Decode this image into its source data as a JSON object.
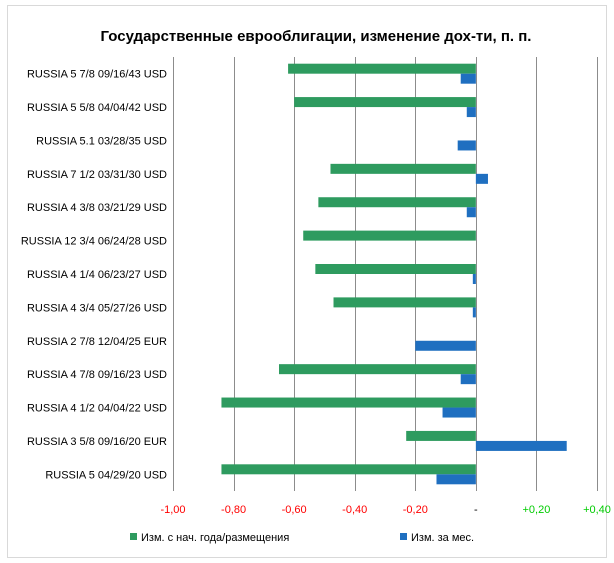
{
  "chart_data": {
    "type": "bar",
    "orientation": "horizontal",
    "title": "Государственные еврооблигации, изменение дох-ти, п. п.",
    "categories": [
      "RUSSIA 5 7/8 09/16/43 USD",
      "RUSSIA 5 5/8 04/04/42 USD",
      "RUSSIA 5.1 03/28/35 USD",
      "RUSSIA 7 1/2 03/31/30 USD",
      "RUSSIA 4 3/8 03/21/29 USD",
      "RUSSIA 12 3/4 06/24/28 USD",
      "RUSSIA 4 1/4 06/23/27 USD",
      "RUSSIA 4 3/4 05/27/26 USD",
      "RUSSIA 2 7/8 12/04/25 EUR",
      "RUSSIA 4 7/8 09/16/23 USD",
      "RUSSIA 4 1/2 04/04/22 USD",
      "RUSSIA 3 5/8 09/16/20 EUR",
      "RUSSIA 5 04/29/20 USD"
    ],
    "series": [
      {
        "name": "Изм. с нач. года/размещения",
        "color": "#2e9b5f",
        "values": [
          -0.62,
          -0.6,
          null,
          -0.48,
          -0.52,
          -0.57,
          -0.53,
          -0.47,
          null,
          -0.65,
          -0.84,
          -0.23,
          -0.84
        ]
      },
      {
        "name": "Изм. за мес.",
        "color": "#1f6fc0",
        "values": [
          -0.05,
          -0.03,
          -0.06,
          0.04,
          -0.03,
          null,
          -0.01,
          -0.01,
          -0.2,
          -0.05,
          -0.11,
          0.3,
          -0.13
        ]
      }
    ],
    "xlim": [
      -1.0,
      0.4
    ],
    "xticks": [
      -1.0,
      -0.8,
      -0.6,
      -0.4,
      -0.2,
      0.0,
      0.2,
      0.4
    ],
    "xtick_labels": [
      "-1,00",
      "-0,80",
      "-0,60",
      "-0,40",
      "-0,20",
      "-",
      "+0,20",
      "+0,40"
    ],
    "xtick_colors": [
      "#ff0000",
      "#ff0000",
      "#ff0000",
      "#ff0000",
      "#ff0000",
      "#000000",
      "#00cc00",
      "#00cc00"
    ],
    "grid": true,
    "legend": "bottom"
  }
}
